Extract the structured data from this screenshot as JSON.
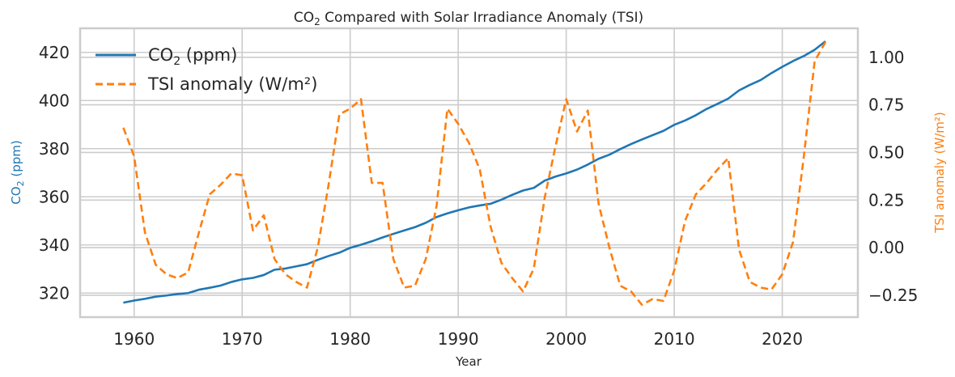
{
  "chart_data": {
    "type": "line",
    "title": {
      "pre": "CO",
      "sub": "2",
      "post": " Compared with Solar Irradiance Anomaly (TSI)"
    },
    "xlabel": "Year",
    "ylabel_left": {
      "pre": "CO",
      "sub": "2",
      "post": " (ppm)"
    },
    "ylabel_right": "TSI anomaly (W/m²)",
    "xlim": [
      1955,
      2027
    ],
    "ylim_left": [
      310,
      430
    ],
    "ylim_right": [
      -0.365,
      1.152
    ],
    "x_ticks": [
      1960,
      1970,
      1980,
      1990,
      2000,
      2010,
      2020
    ],
    "y_left_ticks": [
      320,
      340,
      360,
      380,
      400,
      420
    ],
    "y_right_ticks": [
      -0.25,
      0.0,
      0.25,
      0.5,
      0.75,
      1.0
    ],
    "y_right_tick_labels": [
      "−0.25",
      "0.00",
      "0.25",
      "0.50",
      "0.75",
      "1.00"
    ],
    "grid": true,
    "legend_position": "top-left",
    "series": [
      {
        "name": {
          "pre": "CO",
          "sub": "2",
          "post": " (ppm)"
        },
        "axis": "left",
        "color": "#1f77b4",
        "style": "solid",
        "x": [
          1959,
          1960,
          1961,
          1962,
          1963,
          1964,
          1965,
          1966,
          1967,
          1968,
          1969,
          1970,
          1971,
          1972,
          1973,
          1974,
          1975,
          1976,
          1977,
          1978,
          1979,
          1980,
          1981,
          1982,
          1983,
          1984,
          1985,
          1986,
          1987,
          1988,
          1989,
          1990,
          1991,
          1992,
          1993,
          1994,
          1995,
          1996,
          1997,
          1998,
          1999,
          2000,
          2001,
          2002,
          2003,
          2004,
          2005,
          2006,
          2007,
          2008,
          2009,
          2010,
          2011,
          2012,
          2013,
          2014,
          2015,
          2016,
          2017,
          2018,
          2019,
          2020,
          2021,
          2022,
          2023,
          2024
        ],
        "values": [
          316.0,
          316.9,
          317.6,
          318.5,
          319.0,
          319.6,
          320.0,
          321.4,
          322.2,
          323.1,
          324.6,
          325.7,
          326.3,
          327.5,
          329.7,
          330.2,
          331.1,
          332.0,
          333.8,
          335.4,
          336.8,
          338.8,
          340.1,
          341.5,
          343.1,
          344.6,
          346.0,
          347.4,
          349.2,
          351.6,
          353.1,
          354.4,
          355.6,
          356.4,
          357.1,
          358.8,
          360.8,
          362.6,
          363.7,
          366.7,
          368.4,
          369.7,
          371.3,
          373.4,
          375.8,
          377.5,
          379.8,
          381.9,
          383.8,
          385.6,
          387.4,
          389.9,
          391.7,
          393.9,
          396.5,
          398.6,
          400.8,
          404.2,
          406.5,
          408.5,
          411.4,
          414.0,
          416.4,
          418.5,
          421.1,
          424.6
        ]
      },
      {
        "name": "TSI anomaly (W/m²)",
        "axis": "right",
        "color": "#ff7f0e",
        "style": "dashed",
        "x": [
          1959,
          1960,
          1961,
          1962,
          1963,
          1964,
          1965,
          1966,
          1967,
          1968,
          1969,
          1970,
          1971,
          1972,
          1973,
          1974,
          1975,
          1976,
          1977,
          1978,
          1979,
          1980,
          1981,
          1982,
          1983,
          1984,
          1985,
          1986,
          1987,
          1988,
          1989,
          1990,
          1991,
          1992,
          1993,
          1994,
          1995,
          1996,
          1997,
          1998,
          1999,
          2000,
          2001,
          2002,
          2003,
          2004,
          2005,
          2006,
          2007,
          2008,
          2009,
          2010,
          2011,
          2012,
          2013,
          2014,
          2015,
          2016,
          2017,
          2018,
          2019,
          2020,
          2021,
          2022,
          2023,
          2024
        ],
        "values": [
          0.63,
          0.48,
          0.08,
          -0.09,
          -0.14,
          -0.16,
          -0.13,
          0.08,
          0.28,
          0.33,
          0.39,
          0.38,
          0.09,
          0.17,
          -0.06,
          -0.14,
          -0.18,
          -0.21,
          0.0,
          0.33,
          0.7,
          0.73,
          0.78,
          0.34,
          0.34,
          -0.06,
          -0.21,
          -0.2,
          -0.06,
          0.22,
          0.73,
          0.65,
          0.55,
          0.41,
          0.11,
          -0.08,
          -0.16,
          -0.23,
          -0.11,
          0.26,
          0.53,
          0.78,
          0.61,
          0.72,
          0.23,
          0.0,
          -0.2,
          -0.23,
          -0.3,
          -0.27,
          -0.28,
          -0.12,
          0.14,
          0.28,
          0.34,
          0.41,
          0.47,
          -0.01,
          -0.18,
          -0.21,
          -0.22,
          -0.14,
          0.03,
          0.48,
          0.98,
          1.08
        ]
      }
    ]
  }
}
